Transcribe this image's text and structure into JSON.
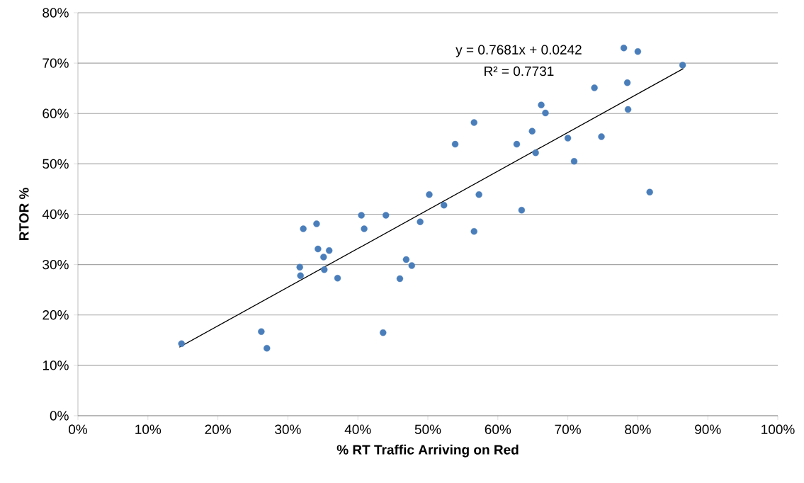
{
  "chart_data": {
    "type": "scatter",
    "xlabel": "% RT Traffic Arriving on Red",
    "ylabel": "RTOR %",
    "annotations": [
      "y = 0.7681x + 0.0242",
      "R² = 0.7731"
    ],
    "series": [
      {
        "color": "#4a7ebb",
        "marker": "circle",
        "x": [
          14.8,
          26.2,
          27.0,
          31.7,
          31.8,
          32.2,
          34.1,
          34.3,
          35.1,
          35.2,
          35.9,
          37.1,
          40.5,
          40.9,
          43.6,
          44.0,
          46.0,
          46.9,
          47.7,
          48.9,
          50.2,
          52.3,
          53.9,
          56.6,
          56.6,
          57.3,
          62.7,
          63.4,
          64.9,
          65.4,
          66.2,
          66.8,
          70.0,
          70.9,
          73.8,
          74.8,
          78.0,
          78.5,
          78.6,
          80.0,
          81.7,
          86.4
        ],
        "values": [
          14.3,
          16.7,
          13.4,
          29.5,
          27.8,
          37.1,
          38.1,
          33.1,
          31.5,
          29.0,
          32.8,
          27.3,
          39.8,
          37.1,
          16.5,
          39.8,
          27.2,
          31.0,
          29.8,
          38.5,
          43.9,
          41.8,
          53.9,
          58.2,
          36.6,
          43.9,
          53.9,
          40.8,
          56.5,
          52.2,
          61.7,
          60.1,
          55.1,
          50.5,
          65.1,
          55.4,
          73.0,
          66.1,
          60.8,
          72.3,
          44.4,
          69.6
        ]
      },
      {
        "type": "line",
        "color": "#000000",
        "marker": "none",
        "x": [
          14.5,
          86.5
        ],
        "values": [
          13.6,
          68.9
        ]
      }
    ],
    "xlim": [
      0,
      100
    ],
    "ylim": [
      0,
      80
    ],
    "xticks": [
      {
        "value": 0,
        "label": "0%"
      },
      {
        "value": 10,
        "label": "10%"
      },
      {
        "value": 20,
        "label": "20%"
      },
      {
        "value": 30,
        "label": "30%"
      },
      {
        "value": 40,
        "label": "40%"
      },
      {
        "value": 50,
        "label": "50%"
      },
      {
        "value": 60,
        "label": "60%"
      },
      {
        "value": 70,
        "label": "70%"
      },
      {
        "value": 80,
        "label": "80%"
      },
      {
        "value": 90,
        "label": "90%"
      },
      {
        "value": 100,
        "label": "100%"
      }
    ],
    "yticks": [
      {
        "value": 0,
        "label": "0%"
      },
      {
        "value": 10,
        "label": "10%"
      },
      {
        "value": 20,
        "label": "20%"
      },
      {
        "value": 30,
        "label": "30%"
      },
      {
        "value": 40,
        "label": "40%"
      },
      {
        "value": 50,
        "label": "50%"
      },
      {
        "value": 60,
        "label": "60%"
      },
      {
        "value": 70,
        "label": "70%"
      },
      {
        "value": 80,
        "label": "80%"
      }
    ],
    "grid": "y"
  }
}
